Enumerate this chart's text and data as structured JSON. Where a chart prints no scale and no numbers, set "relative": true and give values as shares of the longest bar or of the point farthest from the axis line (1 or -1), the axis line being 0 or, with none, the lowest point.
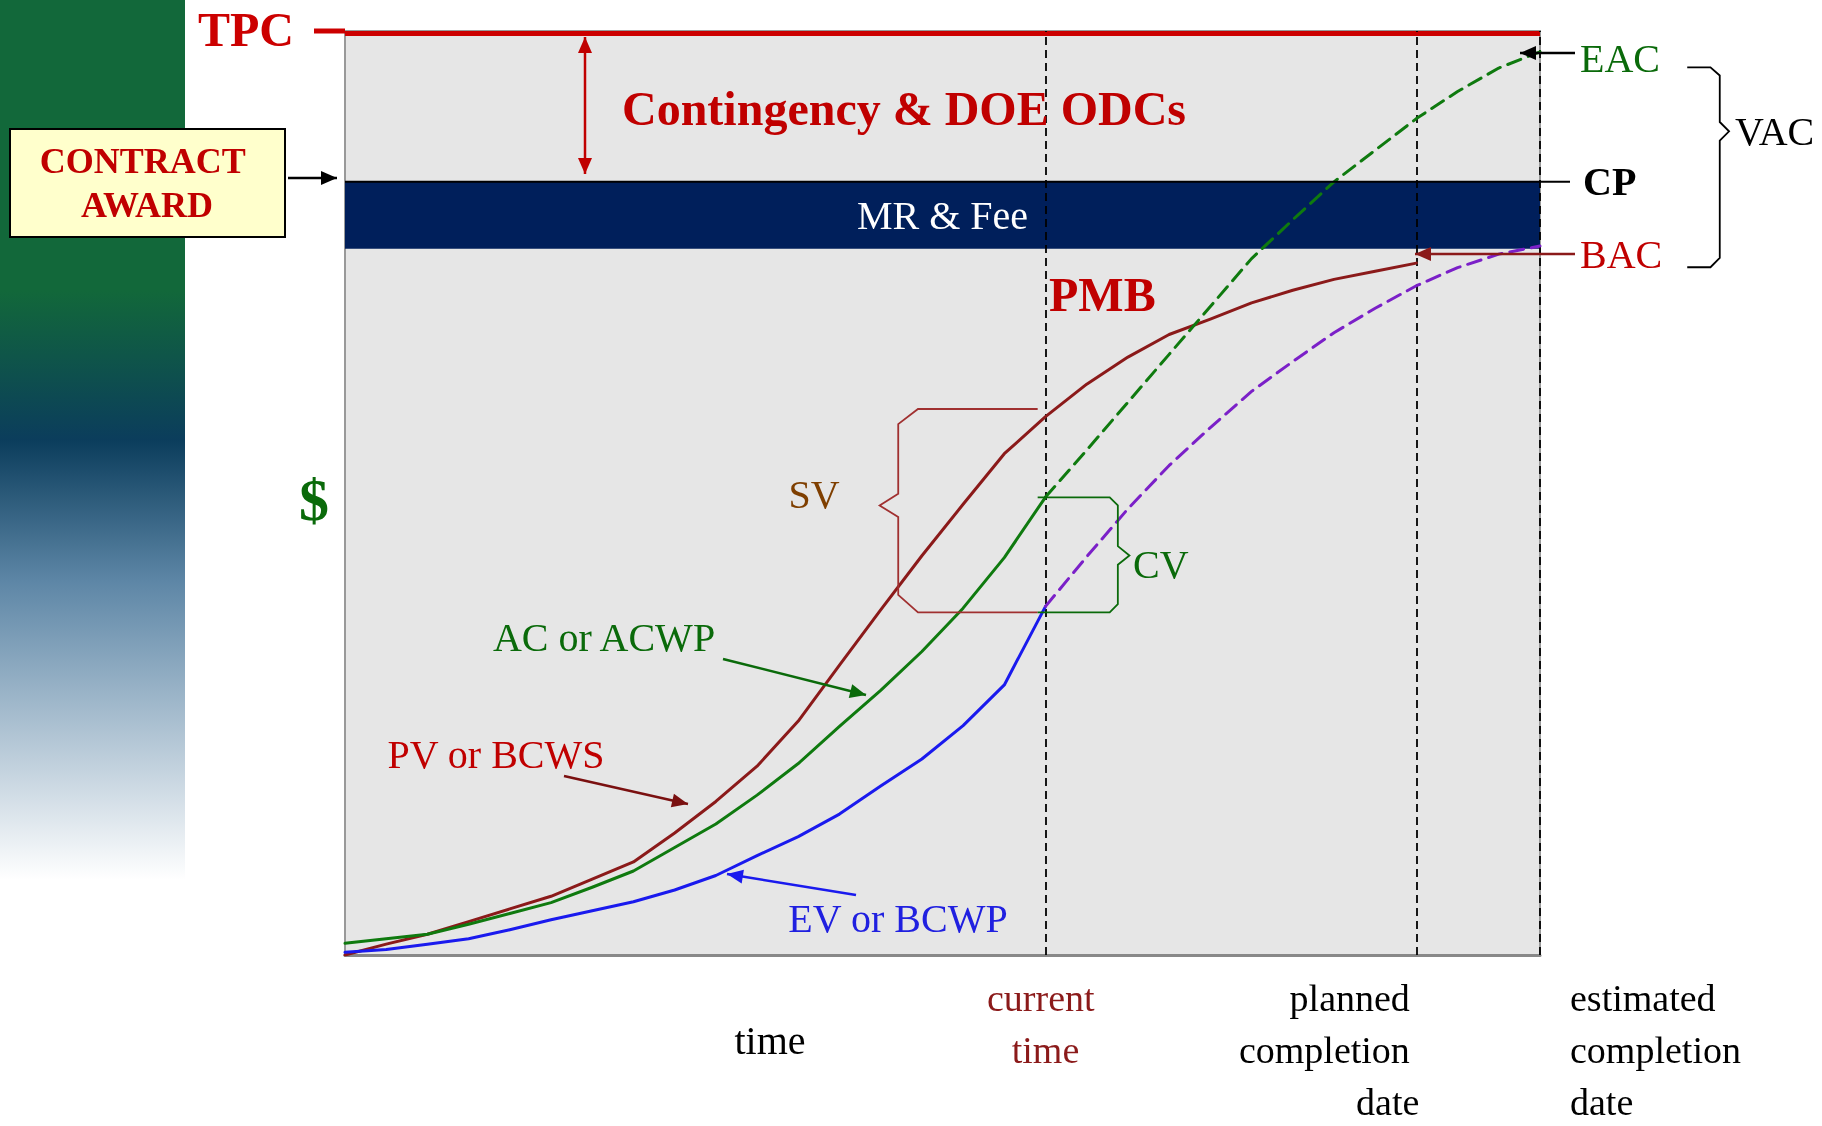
{
  "chart_data": {
    "type": "line",
    "relative": true,
    "tick_labels": false,
    "grid": false,
    "marker": "none",
    "xlabel": "time",
    "ylabel": "$",
    "categories": [
      null,
      null,
      null,
      null,
      null,
      null,
      null,
      null,
      null,
      null,
      null,
      null,
      null,
      null,
      null,
      null,
      null,
      null,
      null,
      null,
      null,
      null,
      null,
      null,
      null,
      null,
      null,
      null,
      null,
      null
    ],
    "series": [
      {
        "type": "line",
        "color": "#8b1a1a",
        "line_style": "solid",
        "values": [
          0,
          0.012,
          0.023,
          0.037,
          0.051,
          0.065,
          0.084,
          0.103,
          0.135,
          0.17,
          0.209,
          0.259,
          0.321,
          0.382,
          0.442,
          0.499,
          0.555,
          0.596,
          0.632,
          0.662,
          0.687,
          0.704,
          0.722,
          0.736,
          0.748,
          0.757,
          0.766,
          null,
          null,
          null
        ]
      },
      {
        "type": "line",
        "color": "#0f7a0f",
        "line_style": "solid",
        "values": [
          0.013,
          0.018,
          0.023,
          0.034,
          0.046,
          0.058,
          0.075,
          0.093,
          0.119,
          0.145,
          0.177,
          0.212,
          0.253,
          0.293,
          0.336,
          0.384,
          0.44,
          0.507,
          null,
          null,
          null,
          null,
          null,
          null,
          null,
          null,
          null,
          null,
          null,
          null
        ]
      },
      {
        "type": "line",
        "color": "#0f7a0f",
        "line_style": "dashed",
        "values": [
          null,
          null,
          null,
          null,
          null,
          null,
          null,
          null,
          null,
          null,
          null,
          null,
          null,
          null,
          null,
          null,
          null,
          0.507,
          0.559,
          0.612,
          0.665,
          0.718,
          0.771,
          0.814,
          0.856,
          0.891,
          0.926,
          0.956,
          0.982,
          1.0
        ]
      },
      {
        "type": "line",
        "color": "#1a1aee",
        "line_style": "solid",
        "values": [
          0.003,
          0.006,
          0.012,
          0.018,
          0.028,
          0.039,
          0.049,
          0.059,
          0.072,
          0.088,
          0.11,
          0.131,
          0.156,
          0.187,
          0.217,
          0.254,
          0.299,
          0.386,
          null,
          null,
          null,
          null,
          null,
          null,
          null,
          null,
          null,
          null,
          null,
          null
        ]
      },
      {
        "type": "line",
        "color": "#7b20c8",
        "line_style": "dashed",
        "values": [
          null,
          null,
          null,
          null,
          null,
          null,
          null,
          null,
          null,
          null,
          null,
          null,
          null,
          null,
          null,
          null,
          null,
          0.386,
          0.441,
          0.494,
          0.542,
          0.584,
          0.624,
          0.657,
          0.689,
          0.716,
          0.741,
          0.761,
          0.776,
          0.785
        ]
      }
    ],
    "bands": [
      {
        "axis": "y",
        "from": 0.782,
        "to": 0.856,
        "label": "MR & Fee",
        "color": "#001f5b"
      }
    ],
    "ref_lines": [
      {
        "axis": "y",
        "value": 1.023,
        "label": "TPC",
        "color": "#cc0000",
        "line_style": "solid"
      },
      {
        "axis": "y",
        "value": 0.856,
        "label": "CP",
        "color": "#000000",
        "line_style": "solid"
      }
    ],
    "annotations": [
      "Contingency & DOE ODCs",
      "PMB",
      "SV",
      "CV",
      "AC or ACWP",
      "PV or BCWS",
      "EV or BCWP",
      "CONTRACT AWARD",
      "VAC",
      "EAC",
      "BAC",
      "current time",
      "planned completion date",
      "estimated completion date"
    ]
  }
}
